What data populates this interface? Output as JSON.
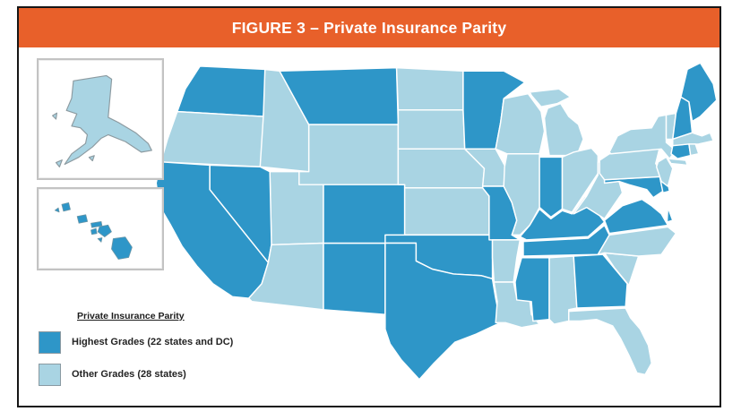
{
  "figure": {
    "title": "FIGURE 3 – Private Insurance Parity"
  },
  "colors": {
    "title_bar": "#E8602A",
    "highest": "#2E96C8",
    "other": "#A9D4E3",
    "frame_border": "#161616",
    "state_border": "#FFFFFF"
  },
  "legend": {
    "title": "Private Insurance Parity",
    "items": [
      {
        "label": "Highest Grades (22 states and DC)",
        "category": "highest"
      },
      {
        "label": "Other Grades (28 states)",
        "category": "other"
      }
    ]
  },
  "map": {
    "highest_states": [
      "WA",
      "MT",
      "CA",
      "NV",
      "CO",
      "NM",
      "TX",
      "OK",
      "MN",
      "MO",
      "IN",
      "KY",
      "TN",
      "MS",
      "GA",
      "VA",
      "MD",
      "DE",
      "CT",
      "NH",
      "ME",
      "HI"
    ],
    "other_states": [
      "AK",
      "OR",
      "ID",
      "WY",
      "UT",
      "AZ",
      "ND",
      "SD",
      "NE",
      "KS",
      "IA",
      "WI",
      "MI",
      "IL",
      "OH",
      "AR",
      "LA",
      "AL",
      "FL",
      "SC",
      "NC",
      "WV",
      "PA",
      "NY",
      "NJ",
      "VT",
      "MA",
      "RI"
    ]
  }
}
